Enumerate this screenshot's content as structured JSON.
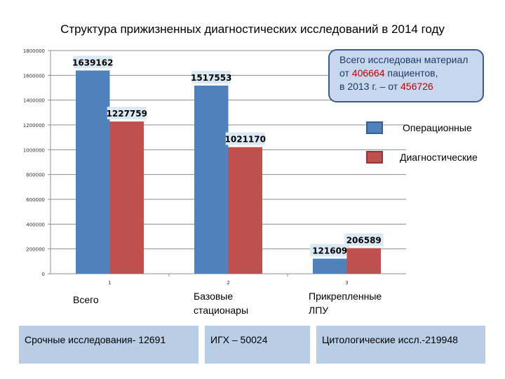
{
  "title": "Структура прижизненных диагностических исследований в 2014 году",
  "colors": {
    "operational": "#4f81bd",
    "diagnostic": "#c0504d",
    "note_bg": "#c6d7ee",
    "box_bg": "#b9cde5",
    "highlight": "#c00000"
  },
  "chart_data": {
    "type": "bar",
    "categories": [
      "1",
      "2",
      "3"
    ],
    "category_captions": [
      "Всего",
      "Базовые стационары",
      "Прикрепленные ЛПУ"
    ],
    "series": [
      {
        "name": "Операционные",
        "values": [
          1639162,
          1517553,
          121609
        ]
      },
      {
        "name": "Диагностические",
        "values": [
          1227759,
          1021170,
          206589
        ]
      }
    ],
    "yticks": [
      "0",
      "200000",
      "400000",
      "600000",
      "800000",
      "1000000",
      "1200000",
      "1400000",
      "1600000",
      "1800000"
    ],
    "ylim": [
      0,
      1800000
    ],
    "grid": true,
    "legend_position": "right"
  },
  "note": {
    "line1": "Всего исследован материал",
    "l2_pre": "от ",
    "l2_num": "406664",
    "l2_post": " пациентов,",
    "l3_pre": "в 2013 г. – от ",
    "l3_num": "456726"
  },
  "boxes": [
    "Срочные исследования- 12691",
    "ИГХ – 50024",
    "Цитологические иссл.-219948"
  ]
}
